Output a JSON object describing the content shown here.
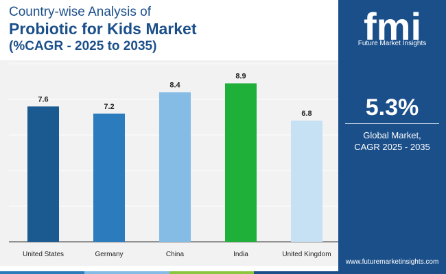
{
  "header": {
    "line1": "Country-wise Analysis of",
    "line2": "Probiotic for Kids Market",
    "line3": "(%CAGR - 2025 to 2035)"
  },
  "chart_data": {
    "type": "bar",
    "title": "Country-wise Analysis of Probiotic for Kids Market (%CAGR - 2025 to 2035)",
    "categories": [
      "United States",
      "Germany",
      "China",
      "India",
      "United Kingdom"
    ],
    "values": [
      7.6,
      7.2,
      8.4,
      8.9,
      6.8
    ],
    "value_labels": [
      "7.6",
      "7.2",
      "8.4",
      "8.9",
      "6.8"
    ],
    "colors": [
      "#1b5a91",
      "#2b7bbd",
      "#84bce6",
      "#1fb03a",
      "#c6e1f3"
    ],
    "xlabel": "",
    "ylabel": "",
    "ylim": [
      0,
      10
    ],
    "grid": true
  },
  "sidebar": {
    "logo_letters": "fmi",
    "logo_text": "Future Market Insights",
    "stat_value": "5.3%",
    "stat_label_line1": "Global Market,",
    "stat_label_line2": "CAGR 2025 - 2035",
    "website": "www.futuremarketinsights.com"
  },
  "colors": {
    "brand": "#1b4f8a",
    "strip": [
      "#2b7bbd",
      "#84bce6",
      "#8cc63f",
      "#1b4f8a"
    ]
  }
}
